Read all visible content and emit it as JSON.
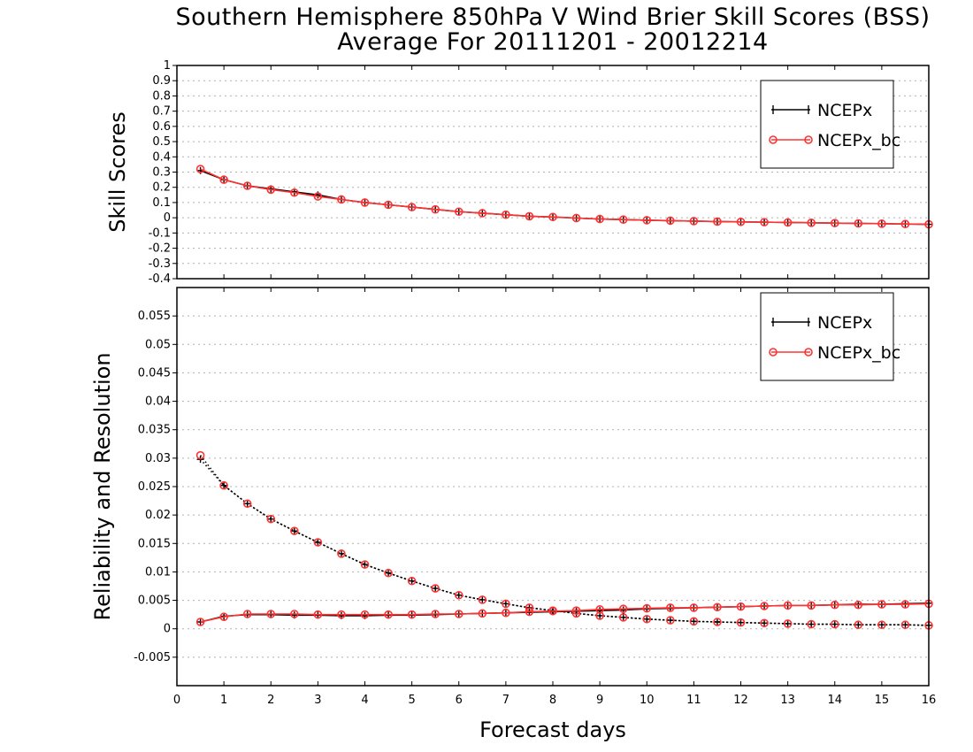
{
  "title_line1": "Southern Hemisphere 850hPa V Wind Brier Skill Scores (BSS)",
  "title_line2": "Average For 20111201 - 20012214",
  "xlabel": "Forecast days",
  "colors": {
    "ncepx": "#000000",
    "ncepx_bc": "#ff3333",
    "grid": "#b0b0b0"
  },
  "chart_data": [
    {
      "type": "line",
      "panel": "top",
      "ylabel": "Skill Scores",
      "xlim": [
        0,
        16
      ],
      "ylim": [
        -0.4,
        1
      ],
      "xticks": [
        "0",
        "1",
        "2",
        "3",
        "4",
        "5",
        "6",
        "7",
        "8",
        "9",
        "10",
        "11",
        "12",
        "13",
        "14",
        "15",
        "16"
      ],
      "yticks": [
        "-0.4",
        "-0.3",
        "-0.2",
        "-0.1",
        "0",
        "0.1",
        "0.2",
        "0.3",
        "0.4",
        "0.5",
        "0.6",
        "0.7",
        "0.8",
        "0.9",
        "1"
      ],
      "legend": {
        "placement": "top-right",
        "entries": [
          "NCEPx",
          "NCEPx_bc"
        ]
      },
      "x": [
        0.5,
        1,
        1.5,
        2,
        2.5,
        3,
        3.5,
        4,
        4.5,
        5,
        5.5,
        6,
        6.5,
        7,
        7.5,
        8,
        8.5,
        9,
        9.5,
        10,
        10.5,
        11,
        11.5,
        12,
        12.5,
        13,
        13.5,
        14,
        14.5,
        15,
        15.5,
        16
      ],
      "series": [
        {
          "name": "NCEPx",
          "style": "solid",
          "values": [
            0.31,
            0.25,
            0.21,
            0.19,
            0.17,
            0.15,
            0.12,
            0.1,
            0.085,
            0.07,
            0.055,
            0.04,
            0.03,
            0.02,
            0.01,
            0.005,
            -0.002,
            -0.008,
            -0.012,
            -0.016,
            -0.019,
            -0.022,
            -0.025,
            -0.027,
            -0.029,
            -0.031,
            -0.033,
            -0.035,
            -0.037,
            -0.039,
            -0.041,
            -0.043
          ]
        },
        {
          "name": "NCEPx_bc",
          "style": "solid",
          "values": [
            0.32,
            0.25,
            0.21,
            0.185,
            0.165,
            0.14,
            0.12,
            0.1,
            0.085,
            0.07,
            0.055,
            0.04,
            0.03,
            0.02,
            0.01,
            0.005,
            -0.002,
            -0.008,
            -0.012,
            -0.016,
            -0.019,
            -0.022,
            -0.025,
            -0.027,
            -0.029,
            -0.031,
            -0.033,
            -0.035,
            -0.037,
            -0.039,
            -0.041,
            -0.043
          ]
        }
      ]
    },
    {
      "type": "line",
      "panel": "bottom",
      "ylabel": "Reliability and Resolution",
      "xlim": [
        0,
        16
      ],
      "ylim": [
        -0.01,
        0.06
      ],
      "xticks": [
        "0",
        "1",
        "2",
        "3",
        "4",
        "5",
        "6",
        "7",
        "8",
        "9",
        "10",
        "11",
        "12",
        "13",
        "14",
        "15",
        "16"
      ],
      "yticks": [
        "-0.005",
        "0",
        "0.005",
        "0.01",
        "0.015",
        "0.02",
        "0.025",
        "0.03",
        "0.035",
        "0.04",
        "0.045",
        "0.05",
        "0.055"
      ],
      "legend": {
        "placement": "top-right",
        "entries": [
          "NCEPx",
          "NCEPx_bc"
        ]
      },
      "x": [
        0.5,
        1,
        1.5,
        2,
        2.5,
        3,
        3.5,
        4,
        4.5,
        5,
        5.5,
        6,
        6.5,
        7,
        7.5,
        8,
        8.5,
        9,
        9.5,
        10,
        10.5,
        11,
        11.5,
        12,
        12.5,
        13,
        13.5,
        14,
        14.5,
        15,
        15.5,
        16
      ],
      "series": [
        {
          "name": "NCEPx",
          "metric": "resolution",
          "style": "dotted",
          "values": [
            0.0298,
            0.0252,
            0.022,
            0.0193,
            0.0172,
            0.0152,
            0.0132,
            0.0113,
            0.0098,
            0.0084,
            0.0071,
            0.0059,
            0.0051,
            0.0044,
            0.0037,
            0.0032,
            0.0027,
            0.0023,
            0.002,
            0.0017,
            0.0015,
            0.0013,
            0.0012,
            0.0011,
            0.001,
            0.0009,
            0.0008,
            0.0008,
            0.0007,
            0.0007,
            0.0007,
            0.0006
          ]
        },
        {
          "name": "NCEPx_bc",
          "metric": "resolution",
          "style": "dotted",
          "values": [
            0.0305,
            0.0252,
            0.022,
            0.0193,
            0.0172,
            0.0152,
            0.0132,
            0.0113,
            0.0098,
            0.0084,
            0.0071,
            0.0059,
            0.0051,
            0.0044,
            0.0037,
            0.0032,
            0.0027,
            0.0023,
            0.002,
            0.0017,
            0.0015,
            0.0013,
            0.0012,
            0.0011,
            0.001,
            0.0009,
            0.0008,
            0.0008,
            0.0007,
            0.0007,
            0.0007,
            0.0006
          ]
        },
        {
          "name": "NCEPx",
          "metric": "reliability",
          "style": "solid",
          "values": [
            0.0012,
            0.0022,
            0.0025,
            0.0025,
            0.0024,
            0.0024,
            0.0023,
            0.0023,
            0.0024,
            0.0024,
            0.0025,
            0.0026,
            0.0027,
            0.0028,
            0.0029,
            0.003,
            0.0031,
            0.0032,
            0.0033,
            0.0035,
            0.0036,
            0.0037,
            0.0038,
            0.0039,
            0.004,
            0.0041,
            0.0041,
            0.0042,
            0.0043,
            0.0043,
            0.0044,
            0.0045
          ]
        },
        {
          "name": "NCEPx_bc",
          "metric": "reliability",
          "style": "solid",
          "values": [
            0.0012,
            0.0021,
            0.0026,
            0.0026,
            0.0026,
            0.0025,
            0.0025,
            0.0025,
            0.0025,
            0.0025,
            0.0026,
            0.0026,
            0.0027,
            0.0028,
            0.003,
            0.0031,
            0.0032,
            0.0034,
            0.0035,
            0.0036,
            0.0037,
            0.0037,
            0.0038,
            0.0039,
            0.004,
            0.0041,
            0.0041,
            0.0042,
            0.0042,
            0.0043,
            0.0043,
            0.0044
          ]
        }
      ]
    }
  ]
}
